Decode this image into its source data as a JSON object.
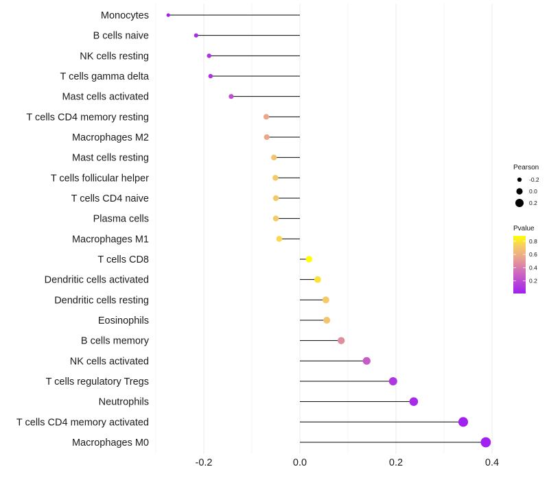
{
  "chart_data": {
    "type": "lollipop",
    "title": "",
    "xlabel": "",
    "ylabel": "",
    "xlim": [
      -0.3,
      0.43
    ],
    "x_ticks": [
      "-0.2",
      "0.0",
      "0.2",
      "0.4"
    ],
    "x_tick_values": [
      -0.2,
      0.0,
      0.2,
      0.4
    ],
    "grid": true,
    "categories": [
      "Monocytes",
      "B cells naive",
      "NK cells resting",
      "T cells gamma delta",
      "Mast cells activated",
      "T cells CD4 memory resting",
      "Macrophages M2",
      "Mast cells resting",
      "T cells follicular helper",
      "T cells CD4 naive",
      "Plasma cells",
      "Macrophages M1",
      "T cells CD8",
      "Dendritic cells activated",
      "Dendritic cells resting",
      "Eosinophils",
      "B cells memory",
      "NK cells activated",
      "T cells regulatory  Tregs ",
      "Neutrophils",
      "T cells CD4 memory activated",
      "Macrophages M0"
    ],
    "pearson": [
      -0.274,
      -0.216,
      -0.189,
      -0.186,
      -0.143,
      -0.07,
      -0.069,
      -0.054,
      -0.051,
      -0.05,
      -0.05,
      -0.043,
      0.019,
      0.037,
      0.054,
      0.056,
      0.086,
      0.139,
      0.194,
      0.237,
      0.34,
      0.387
    ],
    "pvalue": [
      0.01,
      0.05,
      0.08,
      0.08,
      0.2,
      0.55,
      0.55,
      0.68,
      0.7,
      0.7,
      0.7,
      0.75,
      0.87,
      0.78,
      0.7,
      0.68,
      0.45,
      0.25,
      0.1,
      0.05,
      0.01,
      0.003
    ],
    "legend": {
      "placement": "right",
      "size_title": "Pearson",
      "size_labels": [
        "-0.2",
        "0.0",
        "0.2"
      ],
      "size_values": [
        -0.2,
        0.0,
        0.2
      ],
      "color_title": "Pvalue",
      "color_labels": [
        "0.8",
        "0.6",
        "0.4",
        "0.2"
      ],
      "color_values": [
        0.8,
        0.6,
        0.4,
        0.2
      ],
      "color_low": "#A020F0",
      "color_high": "#FFFF00"
    }
  }
}
